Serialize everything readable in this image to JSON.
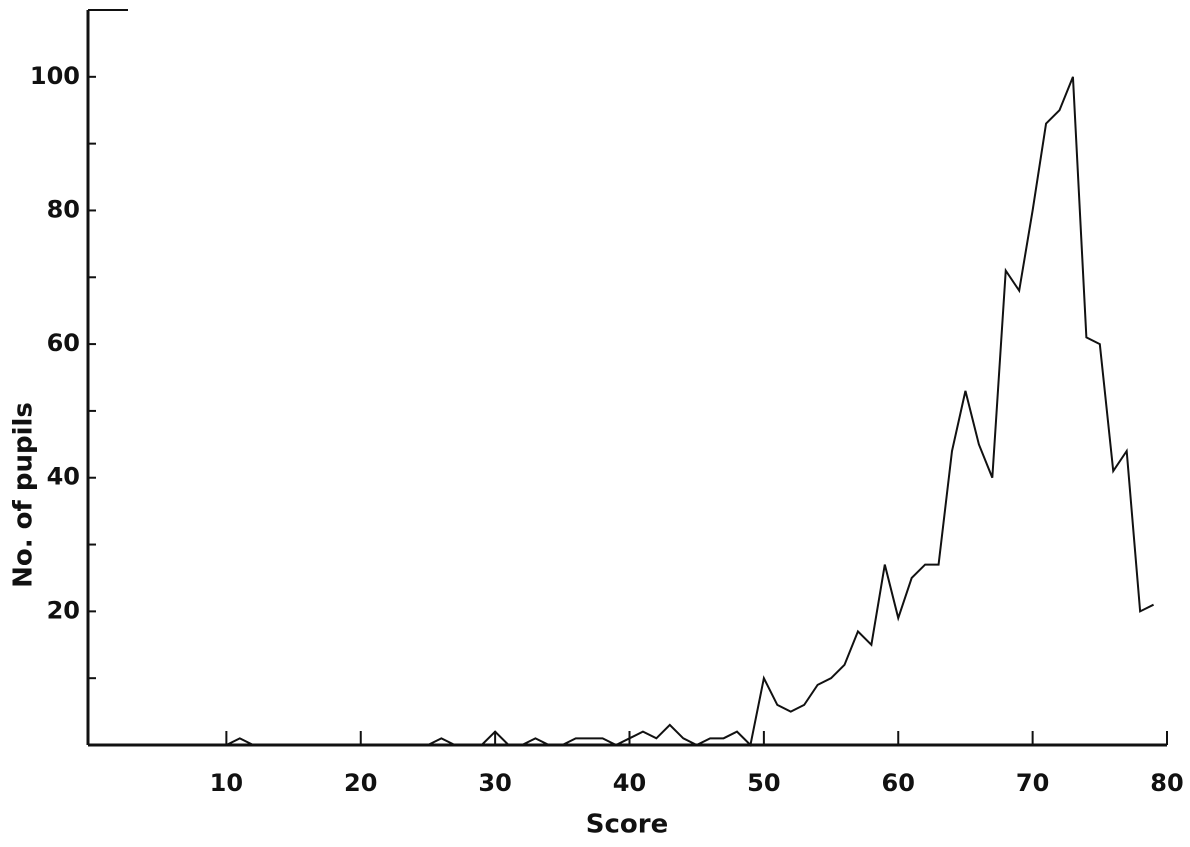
{
  "chart_data": {
    "type": "line",
    "xlabel": "Score",
    "ylabel": "No. of pupils",
    "x": [
      0,
      1,
      2,
      3,
      4,
      5,
      6,
      7,
      8,
      9,
      10,
      11,
      12,
      13,
      14,
      15,
      16,
      17,
      18,
      19,
      20,
      21,
      22,
      23,
      24,
      25,
      26,
      27,
      28,
      29,
      30,
      31,
      32,
      33,
      34,
      35,
      36,
      37,
      38,
      39,
      40,
      41,
      42,
      43,
      44,
      45,
      46,
      47,
      48,
      49,
      50,
      51,
      52,
      53,
      54,
      55,
      56,
      57,
      58,
      59,
      60,
      61,
      62,
      63,
      64,
      65,
      66,
      67,
      68,
      69,
      70,
      71,
      72,
      73,
      74,
      75,
      76,
      77,
      78,
      79
    ],
    "values": [
      0,
      0,
      0,
      0,
      0,
      0,
      0,
      0,
      0,
      0,
      0,
      1,
      0,
      0,
      0,
      0,
      0,
      0,
      0,
      0,
      0,
      0,
      0,
      0,
      0,
      0,
      1,
      0,
      0,
      0,
      2,
      0,
      0,
      1,
      0,
      0,
      1,
      1,
      1,
      0,
      1,
      2,
      1,
      3,
      1,
      0,
      1,
      1,
      2,
      0,
      10,
      6,
      5,
      6,
      9,
      10,
      12,
      17,
      15,
      27,
      19,
      25,
      27,
      27,
      44,
      53,
      45,
      40,
      71,
      68,
      80,
      93,
      95,
      100,
      61,
      60,
      41,
      44,
      20,
      21
    ],
    "color": "#111111",
    "xlim": [
      0,
      80
    ],
    "xticks": [
      10,
      20,
      30,
      40,
      50,
      60,
      70,
      80
    ],
    "ylim": [
      0,
      110
    ],
    "yticks": [
      20,
      40,
      60,
      80,
      100
    ],
    "yminorticks": [
      10,
      30,
      50,
      70,
      90
    ],
    "grid": false
  }
}
